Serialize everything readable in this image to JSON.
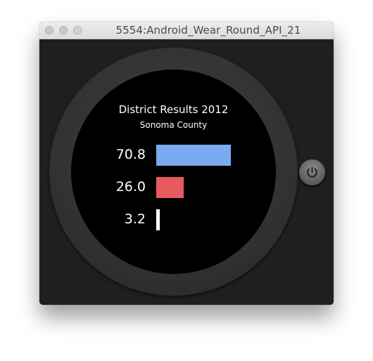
{
  "window": {
    "title": "5554:Android_Wear_Round_API_21"
  },
  "chart_data": {
    "type": "bar",
    "orientation": "horizontal",
    "title": "District Results 2012",
    "subtitle": "Sonoma County",
    "labels": [
      "70.8",
      "26.0",
      "3.2"
    ],
    "values": [
      70.8,
      26.0,
      3.2
    ],
    "colors": [
      "#7baaf0",
      "#e85a5f",
      "#ffffff"
    ],
    "xlim": [
      0,
      100
    ]
  },
  "controls": {
    "power_icon": "power-icon"
  }
}
